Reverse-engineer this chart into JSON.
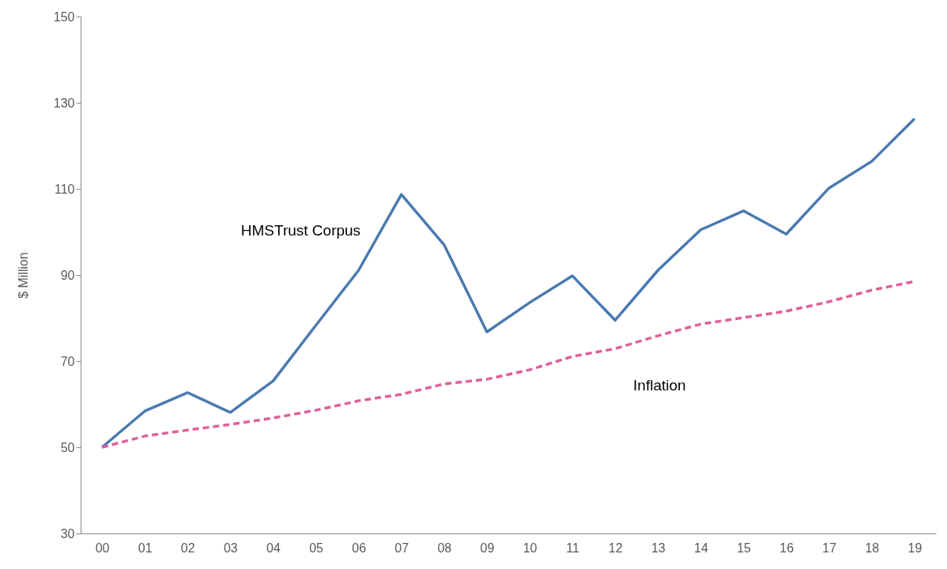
{
  "chart_data": {
    "type": "line",
    "ylabel": "$ Million",
    "categories": [
      "00",
      "01",
      "02",
      "03",
      "04",
      "05",
      "06",
      "07",
      "08",
      "09",
      "10",
      "11",
      "12",
      "13",
      "14",
      "15",
      "16",
      "17",
      "18",
      "19"
    ],
    "ylim": [
      30,
      150
    ],
    "yticks": [
      30,
      50,
      70,
      90,
      110,
      130,
      150
    ],
    "marker": "none",
    "series": [
      {
        "name": "HMSTrust Corpus",
        "color": "#4a7ab0",
        "line_style": "solid",
        "values": [
          50,
          58.4,
          62.7,
          58.1,
          65.4,
          78.3,
          91.1,
          108.7,
          97,
          76.8,
          83.6,
          89.8,
          79.5,
          91.1,
          100.5,
          104.9,
          99.5,
          110.2,
          116.4,
          126.3
        ]
      },
      {
        "name": "Inflation",
        "color": "#e0609a",
        "line_style": "dashed",
        "values": [
          50,
          52.6,
          54,
          55.3,
          56.8,
          58.6,
          60.8,
          62.3,
          64.7,
          65.8,
          68,
          71.1,
          72.9,
          75.9,
          78.6,
          80.1,
          81.6,
          83.8,
          86.5,
          88.5
        ]
      }
    ]
  }
}
